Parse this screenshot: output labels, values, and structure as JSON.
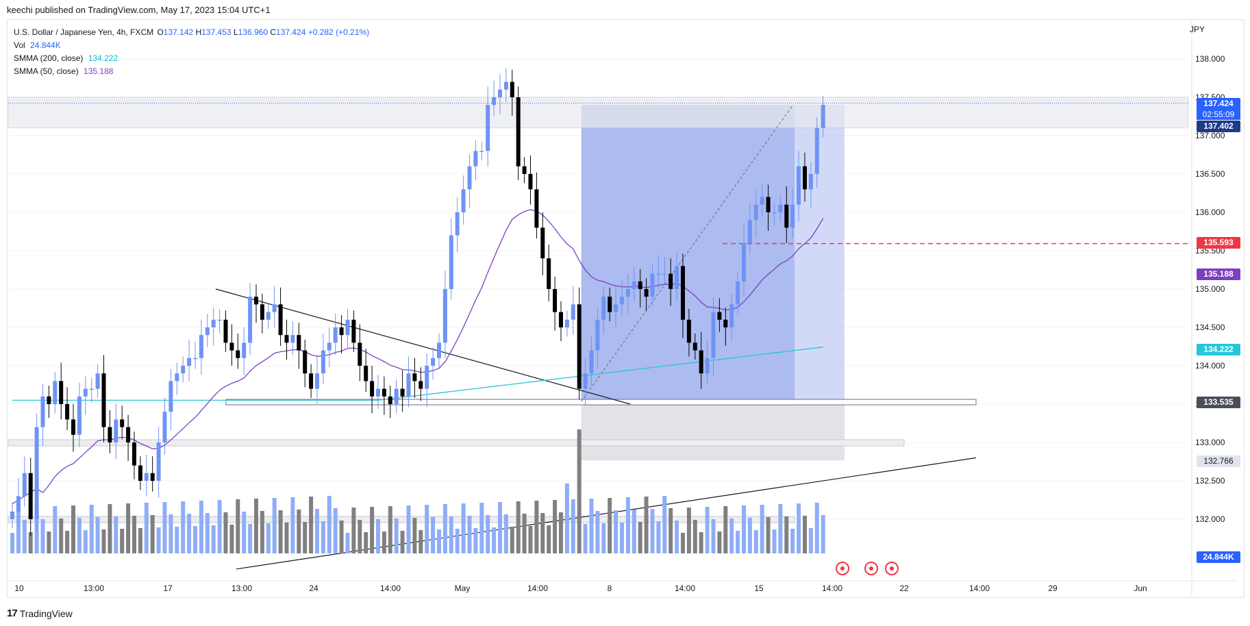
{
  "header": {
    "published_line": "keechi published on TradingView.com, May 17, 2023 15:04 UTC+1"
  },
  "legend": {
    "symbol": "U.S. Dollar / Japanese Yen, 4h, FXCM",
    "open_label": "O",
    "open": "137.142",
    "high_label": "H",
    "high": "137.453",
    "low_label": "L",
    "low": "136.960",
    "close_label": "C",
    "close": "137.424",
    "change": "+0.282 (+0.21%)",
    "vol_label": "Vol",
    "vol": "24.844K",
    "smma200_label": "SMMA (200, close)",
    "smma200": "134.222",
    "smma50_label": "SMMA (50, close)",
    "smma50": "135.188"
  },
  "axis": {
    "currency": "JPY",
    "price_ticks": [
      "138.000",
      "137.500",
      "137.000",
      "136.500",
      "136.000",
      "135.500",
      "135.000",
      "134.500",
      "134.000",
      "133.500",
      "133.000",
      "132.500",
      "132.000"
    ],
    "time_ticks": [
      "10",
      "13:00",
      "17",
      "13:00",
      "24",
      "14:00",
      "May",
      "14:00",
      "8",
      "14:00",
      "15",
      "14:00",
      "22",
      "14:00",
      "29",
      "Jun"
    ]
  },
  "price_tags": {
    "last": "137.424",
    "countdown": "02:55:09",
    "tp_level": "137.402",
    "dashed_level": "135.593",
    "smma50": "135.188",
    "smma200": "134.222",
    "entry_level": "133.535",
    "stop_level": "132.766",
    "volume": "24.844K"
  },
  "footer": {
    "brand": "TradingView"
  },
  "colors": {
    "up": "#6f93f5",
    "down": "#000000",
    "vol_up": "#8fadf7",
    "vol_down": "#808080",
    "smma200": "#26c6da",
    "smma50": "#7e3fbf",
    "target_zone": "#a3b4ee",
    "stop_zone": "#d8d9de",
    "dashed": "#f23645",
    "accent": "#2962ff"
  },
  "chart_data": {
    "type": "candlestick",
    "title": "U.S. Dollar / Japanese Yen, 4h, FXCM",
    "ylim": [
      131.8,
      138.6
    ],
    "period": "4h",
    "last_ohlc": {
      "open": 137.142,
      "high": 137.453,
      "low": 136.96,
      "close": 137.424
    },
    "x_ticks": [
      "10",
      "13:00",
      "17",
      "13:00",
      "24",
      "14:00",
      "May",
      "14:00",
      "8",
      "14:00",
      "15",
      "14:00",
      "22",
      "14:00",
      "29",
      "Jun"
    ],
    "close_series": [
      132.1,
      132.3,
      132.6,
      132.0,
      133.2,
      133.6,
      133.5,
      133.8,
      133.5,
      133.3,
      133.1,
      133.6,
      133.7,
      133.7,
      133.9,
      133.2,
      133.0,
      133.3,
      133.2,
      133.0,
      132.7,
      132.5,
      132.6,
      132.5,
      133.0,
      133.4,
      133.8,
      133.9,
      134.0,
      134.1,
      134.1,
      134.4,
      134.5,
      134.6,
      134.6,
      134.3,
      134.2,
      134.1,
      134.3,
      134.9,
      134.8,
      134.6,
      134.7,
      134.8,
      134.4,
      134.3,
      134.4,
      134.2,
      133.9,
      133.7,
      133.9,
      134.2,
      134.3,
      134.5,
      134.4,
      134.6,
      134.3,
      134.0,
      133.8,
      133.6,
      133.7,
      133.6,
      133.5,
      133.7,
      133.6,
      133.9,
      133.8,
      133.7,
      134.0,
      134.1,
      134.3,
      135.0,
      135.7,
      136.0,
      136.3,
      136.6,
      136.8,
      136.8,
      137.4,
      137.5,
      137.6,
      137.7,
      137.5,
      136.6,
      136.5,
      136.3,
      135.8,
      135.4,
      135.0,
      134.7,
      134.5,
      134.6,
      134.8,
      133.7,
      133.9,
      134.2,
      134.6,
      134.9,
      134.7,
      134.8,
      134.9,
      135.0,
      135.1,
      135.0,
      134.9,
      135.2,
      135.2,
      135.2,
      135.0,
      135.3,
      134.6,
      134.3,
      134.2,
      133.9,
      134.1,
      134.7,
      134.6,
      134.5,
      134.8,
      135.1,
      135.6,
      135.9,
      136.1,
      136.2,
      136.0,
      136.0,
      136.1,
      135.8,
      136.1,
      136.6,
      136.3,
      136.5,
      137.1,
      137.4
    ],
    "series": [
      {
        "name": "SMMA (200, close)",
        "last": 134.222
      },
      {
        "name": "SMMA (50, close)",
        "last": 135.188
      }
    ],
    "levels": {
      "target": 137.402,
      "entry": 133.535,
      "stop": 132.766,
      "dashed": 135.593
    }
  }
}
